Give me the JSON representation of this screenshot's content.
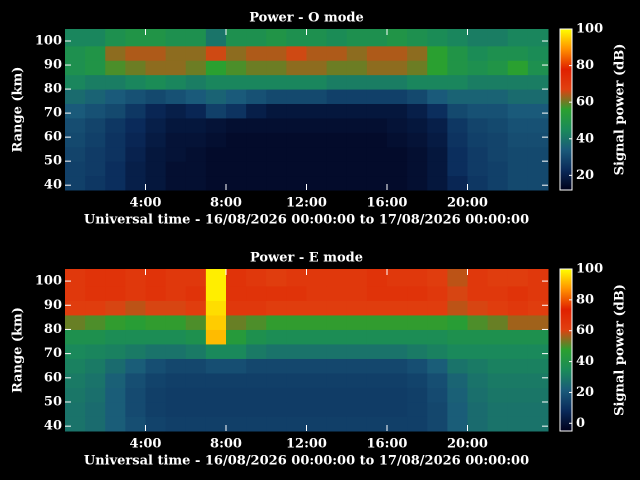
{
  "chart_data": [
    {
      "type": "heatmap",
      "title": "Power - O mode",
      "xlabel": "Universal time - 16/08/2026 00:00:00 to 17/08/2026 00:00:00",
      "ylabel": "Range (km)",
      "colorbar_label": "Signal power (dB)",
      "x_edges": [
        0,
        1,
        2,
        3,
        4,
        5,
        6,
        7,
        8,
        9,
        10,
        11,
        12,
        13,
        14,
        15,
        16,
        17,
        18,
        19,
        20,
        21,
        22,
        23,
        24
      ],
      "y_edges": [
        38,
        44,
        50,
        56,
        62,
        68,
        74,
        80,
        86,
        92,
        98,
        105
      ],
      "xlim": [
        0,
        24
      ],
      "ylim": [
        38,
        105
      ],
      "xticks": [
        {
          "value": 4,
          "label": "4:00"
        },
        {
          "value": 8,
          "label": "8:00"
        },
        {
          "value": 12,
          "label": "12:00"
        },
        {
          "value": 16,
          "label": "16:00"
        },
        {
          "value": 20,
          "label": "20:00"
        }
      ],
      "yticks": [
        40,
        50,
        60,
        70,
        80,
        90,
        100
      ],
      "zlim": [
        12,
        100
      ],
      "zticks": [
        20,
        40,
        60,
        80,
        100
      ],
      "colormap": [
        "#00001a",
        "#0a2a5a",
        "#1a5a7a",
        "#1a8a5a",
        "#2aa030",
        "#e04010",
        "#e02000",
        "#ff9000",
        "#ffff00"
      ],
      "z": [
        [
          28,
          26,
          24,
          20,
          18,
          16,
          16,
          15,
          15,
          15,
          15,
          15,
          15,
          15,
          15,
          15,
          15,
          16,
          18,
          22,
          26,
          28,
          30,
          30
        ],
        [
          28,
          27,
          24,
          20,
          18,
          16,
          16,
          15,
          15,
          15,
          15,
          15,
          15,
          15,
          15,
          15,
          15,
          16,
          18,
          24,
          27,
          28,
          30,
          30
        ],
        [
          29,
          27,
          25,
          21,
          18,
          17,
          16,
          15,
          15,
          15,
          15,
          15,
          15,
          15,
          15,
          15,
          15,
          16,
          18,
          24,
          27,
          29,
          30,
          30
        ],
        [
          30,
          28,
          25,
          22,
          19,
          17,
          17,
          16,
          15,
          15,
          15,
          15,
          15,
          15,
          15,
          15,
          16,
          17,
          19,
          25,
          28,
          29,
          31,
          31
        ],
        [
          31,
          29,
          26,
          23,
          20,
          18,
          18,
          17,
          16,
          16,
          16,
          16,
          16,
          16,
          16,
          16,
          17,
          18,
          20,
          26,
          29,
          30,
          32,
          32
        ],
        [
          34,
          32,
          30,
          26,
          22,
          20,
          22,
          28,
          25,
          20,
          18,
          18,
          18,
          18,
          18,
          18,
          18,
          20,
          24,
          30,
          32,
          32,
          34,
          34
        ],
        [
          38,
          36,
          34,
          32,
          30,
          32,
          34,
          36,
          34,
          32,
          30,
          30,
          30,
          28,
          28,
          28,
          28,
          30,
          34,
          36,
          36,
          36,
          38,
          38
        ],
        [
          44,
          42,
          42,
          44,
          46,
          44,
          42,
          44,
          44,
          44,
          44,
          44,
          44,
          42,
          42,
          42,
          42,
          44,
          44,
          44,
          42,
          42,
          42,
          42
        ],
        [
          48,
          50,
          58,
          60,
          62,
          62,
          60,
          56,
          58,
          60,
          60,
          62,
          62,
          60,
          60,
          62,
          62,
          60,
          56,
          50,
          48,
          50,
          56,
          48
        ],
        [
          48,
          50,
          62,
          64,
          64,
          62,
          62,
          66,
          62,
          64,
          64,
          66,
          64,
          64,
          62,
          64,
          64,
          62,
          56,
          50,
          46,
          48,
          48,
          46
        ],
        [
          44,
          44,
          48,
          50,
          50,
          48,
          48,
          40,
          48,
          48,
          50,
          48,
          48,
          46,
          48,
          48,
          50,
          48,
          46,
          44,
          42,
          42,
          44,
          44
        ]
      ]
    },
    {
      "type": "heatmap",
      "title": "Power - E mode",
      "xlabel": "Universal time - 16/08/2026 00:00:00 to 17/08/2026 00:00:00",
      "ylabel": "Range (km)",
      "colorbar_label": "Signal power (dB)",
      "x_edges": [
        0,
        1,
        2,
        3,
        4,
        5,
        6,
        7,
        8,
        9,
        10,
        11,
        12,
        13,
        14,
        15,
        16,
        17,
        18,
        19,
        20,
        21,
        22,
        23,
        24
      ],
      "y_edges": [
        38,
        44,
        50,
        56,
        62,
        68,
        74,
        80,
        86,
        92,
        98,
        105
      ],
      "xlim": [
        0,
        24
      ],
      "ylim": [
        38,
        105
      ],
      "xticks": [
        {
          "value": 4,
          "label": "4:00"
        },
        {
          "value": 8,
          "label": "8:00"
        },
        {
          "value": 12,
          "label": "12:00"
        },
        {
          "value": 16,
          "label": "16:00"
        },
        {
          "value": 20,
          "label": "20:00"
        }
      ],
      "yticks": [
        40,
        50,
        60,
        70,
        80,
        90,
        100
      ],
      "zlim": [
        -5,
        100
      ],
      "zticks": [
        0,
        20,
        40,
        60,
        80,
        100
      ],
      "colormap": [
        "#00001a",
        "#0a2a5a",
        "#1a5a7a",
        "#1a8a5a",
        "#2aa030",
        "#e04010",
        "#e02000",
        "#ff9000",
        "#ffff00"
      ],
      "z": [
        [
          28,
          26,
          22,
          18,
          15,
          14,
          14,
          14,
          14,
          14,
          14,
          14,
          14,
          14,
          14,
          14,
          14,
          14,
          16,
          22,
          26,
          28,
          28,
          28
        ],
        [
          28,
          26,
          22,
          17,
          14,
          13,
          13,
          13,
          13,
          13,
          13,
          13,
          13,
          13,
          13,
          13,
          13,
          14,
          16,
          22,
          26,
          28,
          28,
          28
        ],
        [
          29,
          27,
          22,
          17,
          14,
          13,
          13,
          13,
          13,
          13,
          13,
          13,
          13,
          13,
          13,
          13,
          13,
          14,
          17,
          23,
          27,
          29,
          29,
          29
        ],
        [
          30,
          28,
          23,
          18,
          15,
          14,
          14,
          14,
          14,
          14,
          14,
          14,
          14,
          14,
          14,
          14,
          14,
          15,
          18,
          24,
          28,
          30,
          30,
          30
        ],
        [
          32,
          30,
          26,
          22,
          18,
          16,
          16,
          18,
          18,
          16,
          16,
          16,
          16,
          16,
          16,
          16,
          16,
          18,
          22,
          28,
          30,
          32,
          32,
          32
        ],
        [
          34,
          33,
          32,
          30,
          28,
          28,
          30,
          34,
          34,
          30,
          28,
          28,
          28,
          28,
          28,
          28,
          28,
          30,
          32,
          34,
          34,
          34,
          34,
          34
        ],
        [
          38,
          38,
          36,
          36,
          36,
          36,
          38,
          92,
          44,
          38,
          36,
          36,
          36,
          36,
          36,
          36,
          36,
          36,
          36,
          38,
          38,
          38,
          38,
          38
        ],
        [
          52,
          50,
          48,
          46,
          48,
          48,
          50,
          94,
          52,
          50,
          48,
          48,
          48,
          48,
          48,
          48,
          48,
          48,
          48,
          46,
          50,
          52,
          56,
          56
        ],
        [
          62,
          62,
          60,
          58,
          60,
          60,
          62,
          96,
          64,
          64,
          62,
          62,
          62,
          62,
          62,
          62,
          62,
          62,
          62,
          58,
          60,
          62,
          64,
          62
        ],
        [
          64,
          66,
          66,
          64,
          66,
          64,
          66,
          98,
          66,
          66,
          66,
          66,
          64,
          64,
          64,
          66,
          66,
          66,
          64,
          60,
          64,
          64,
          66,
          64
        ],
        [
          64,
          66,
          66,
          64,
          66,
          64,
          64,
          98,
          66,
          64,
          62,
          64,
          64,
          64,
          64,
          66,
          64,
          64,
          62,
          58,
          64,
          62,
          62,
          64
        ]
      ]
    }
  ]
}
